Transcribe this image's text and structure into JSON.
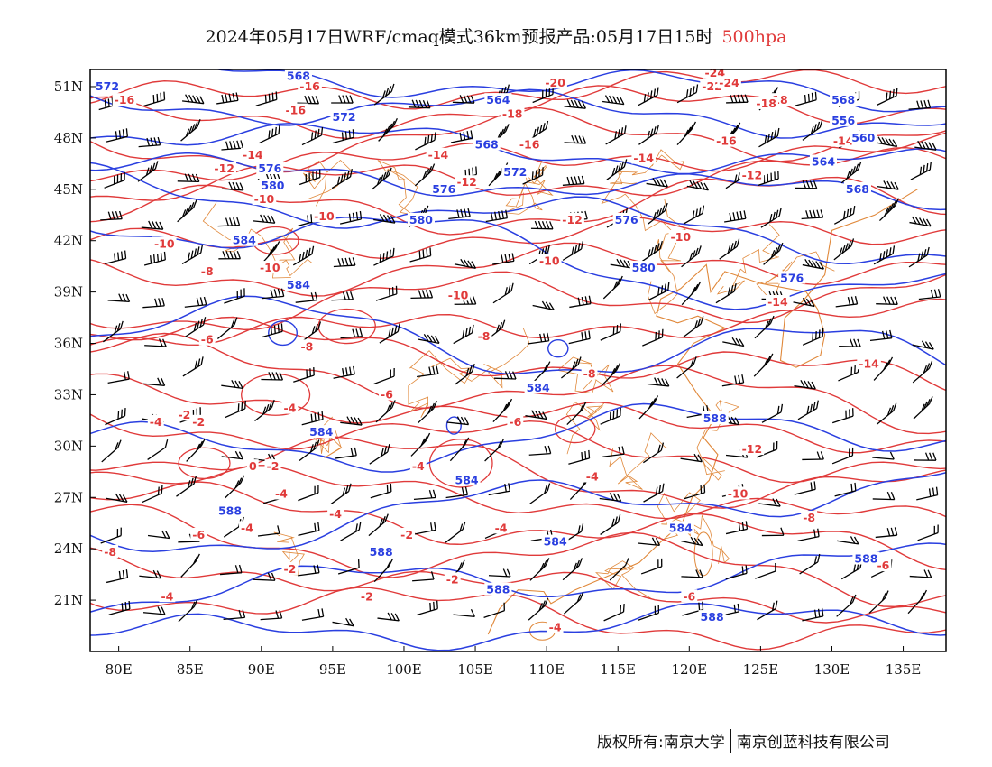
{
  "title": {
    "main": "2024年05月17日WRF/cmaq模式36km预报产品:05月17日15时",
    "level": "500hpa"
  },
  "axes": {
    "lon_ticks": [
      "80E",
      "85E",
      "90E",
      "95E",
      "100E",
      "105E",
      "110E",
      "115E",
      "120E",
      "125E",
      "130E",
      "135E"
    ],
    "lat_ticks": [
      "51N",
      "48N",
      "45N",
      "42N",
      "39N",
      "36N",
      "33N",
      "30N",
      "27N",
      "24N",
      "21N"
    ],
    "lon_range": [
      78,
      138
    ],
    "lat_range": [
      18,
      52
    ]
  },
  "colors": {
    "height_contours": "#2a3fe0",
    "temperature_contours": "#e03a3a",
    "borders": "#e0883a",
    "wind_barbs": "#000000"
  },
  "height_labels": [
    {
      "text": "572",
      "lon": 79.2,
      "lat": 51.0
    },
    {
      "text": "568",
      "lon": 92.6,
      "lat": 51.6
    },
    {
      "text": "564",
      "lon": 106.6,
      "lat": 50.2
    },
    {
      "text": "572",
      "lon": 95.8,
      "lat": 49.2
    },
    {
      "text": "568",
      "lon": 105.8,
      "lat": 47.6
    },
    {
      "text": "576",
      "lon": 90.6,
      "lat": 46.2
    },
    {
      "text": "572",
      "lon": 107.8,
      "lat": 46.0
    },
    {
      "text": "576",
      "lon": 102.8,
      "lat": 45.0
    },
    {
      "text": "580",
      "lon": 90.8,
      "lat": 45.2
    },
    {
      "text": "580",
      "lon": 101.2,
      "lat": 43.2
    },
    {
      "text": "576",
      "lon": 115.6,
      "lat": 43.2
    },
    {
      "text": "584",
      "lon": 88.8,
      "lat": 42.0
    },
    {
      "text": "580",
      "lon": 116.8,
      "lat": 40.4
    },
    {
      "text": "584",
      "lon": 92.6,
      "lat": 39.4
    },
    {
      "text": "576",
      "lon": 127.2,
      "lat": 39.8
    },
    {
      "text": "568",
      "lon": 130.8,
      "lat": 50.2
    },
    {
      "text": "556",
      "lon": 130.8,
      "lat": 49.0
    },
    {
      "text": "560",
      "lon": 132.2,
      "lat": 48.0
    },
    {
      "text": "564",
      "lon": 129.4,
      "lat": 46.6
    },
    {
      "text": "568",
      "lon": 131.8,
      "lat": 45.0
    },
    {
      "text": "584",
      "lon": 109.4,
      "lat": 33.4
    },
    {
      "text": "588",
      "lon": 121.8,
      "lat": 31.6
    },
    {
      "text": "584",
      "lon": 94.2,
      "lat": 30.8
    },
    {
      "text": "584",
      "lon": 104.4,
      "lat": 28.0
    },
    {
      "text": "588",
      "lon": 87.8,
      "lat": 26.2
    },
    {
      "text": "584",
      "lon": 119.4,
      "lat": 25.2
    },
    {
      "text": "584",
      "lon": 110.6,
      "lat": 24.4
    },
    {
      "text": "588",
      "lon": 98.4,
      "lat": 23.8
    },
    {
      "text": "588",
      "lon": 132.4,
      "lat": 23.4
    },
    {
      "text": "588",
      "lon": 106.6,
      "lat": 21.6
    },
    {
      "text": "588",
      "lon": 121.6,
      "lat": 20.0
    }
  ],
  "temp_labels": [
    {
      "text": "-16",
      "lon": 80.4,
      "lat": 50.2
    },
    {
      "text": "-16",
      "lon": 93.4,
      "lat": 51.0
    },
    {
      "text": "-16",
      "lon": 92.4,
      "lat": 49.6
    },
    {
      "text": "-20",
      "lon": 110.6,
      "lat": 51.2
    },
    {
      "text": "-18",
      "lon": 107.6,
      "lat": 49.4
    },
    {
      "text": "-16",
      "lon": 108.8,
      "lat": 47.6
    },
    {
      "text": "-14",
      "lon": 102.4,
      "lat": 47.0
    },
    {
      "text": "-14",
      "lon": 89.4,
      "lat": 47.0
    },
    {
      "text": "-12",
      "lon": 87.4,
      "lat": 46.2
    },
    {
      "text": "-14",
      "lon": 116.8,
      "lat": 46.8
    },
    {
      "text": "-12",
      "lon": 104.4,
      "lat": 45.4
    },
    {
      "text": "-10",
      "lon": 90.2,
      "lat": 44.4
    },
    {
      "text": "-10",
      "lon": 94.4,
      "lat": 43.4
    },
    {
      "text": "-12",
      "lon": 111.8,
      "lat": 43.2
    },
    {
      "text": "-10",
      "lon": 83.2,
      "lat": 41.8
    },
    {
      "text": "-10",
      "lon": 119.4,
      "lat": 42.2
    },
    {
      "text": "-10",
      "lon": 110.2,
      "lat": 40.8
    },
    {
      "text": "-10",
      "lon": 90.6,
      "lat": 40.4
    },
    {
      "text": "-8",
      "lon": 86.2,
      "lat": 40.2
    },
    {
      "text": "-10",
      "lon": 103.8,
      "lat": 38.8
    },
    {
      "text": "-14",
      "lon": 126.2,
      "lat": 38.4
    },
    {
      "text": "-6",
      "lon": 86.2,
      "lat": 36.2
    },
    {
      "text": "-8",
      "lon": 93.2,
      "lat": 35.8
    },
    {
      "text": "-8",
      "lon": 105.6,
      "lat": 36.4
    },
    {
      "text": "-8",
      "lon": 113.0,
      "lat": 34.2
    },
    {
      "text": "-6",
      "lon": 98.8,
      "lat": 33.0
    },
    {
      "text": "-14",
      "lon": 132.6,
      "lat": 34.8
    },
    {
      "text": "-4",
      "lon": 82.6,
      "lat": 31.4
    },
    {
      "text": "-2",
      "lon": 84.6,
      "lat": 31.8
    },
    {
      "text": "-2",
      "lon": 85.6,
      "lat": 31.4
    },
    {
      "text": "-4",
      "lon": 92.0,
      "lat": 32.2
    },
    {
      "text": "-6",
      "lon": 107.8,
      "lat": 31.4
    },
    {
      "text": "-12",
      "lon": 124.4,
      "lat": 29.8
    },
    {
      "text": "0",
      "lon": 89.4,
      "lat": 28.8
    },
    {
      "text": "-2",
      "lon": 90.8,
      "lat": 28.8
    },
    {
      "text": "-4",
      "lon": 101.0,
      "lat": 28.8
    },
    {
      "text": "-4",
      "lon": 113.2,
      "lat": 28.2
    },
    {
      "text": "-4",
      "lon": 91.4,
      "lat": 27.2
    },
    {
      "text": "-10",
      "lon": 123.4,
      "lat": 27.2
    },
    {
      "text": "-4",
      "lon": 95.2,
      "lat": 26.0
    },
    {
      "text": "-4",
      "lon": 89.0,
      "lat": 25.2
    },
    {
      "text": "-6",
      "lon": 85.6,
      "lat": 24.8
    },
    {
      "text": "-4",
      "lon": 106.8,
      "lat": 25.2
    },
    {
      "text": "-8",
      "lon": 128.4,
      "lat": 25.8
    },
    {
      "text": "-8",
      "lon": 79.4,
      "lat": 23.8
    },
    {
      "text": "-2",
      "lon": 100.2,
      "lat": 24.8
    },
    {
      "text": "-2",
      "lon": 92.0,
      "lat": 22.8
    },
    {
      "text": "-6",
      "lon": 133.6,
      "lat": 23.0
    },
    {
      "text": "-2",
      "lon": 103.4,
      "lat": 22.2
    },
    {
      "text": "-4",
      "lon": 83.4,
      "lat": 21.2
    },
    {
      "text": "-2",
      "lon": 97.4,
      "lat": 21.2
    },
    {
      "text": "-6",
      "lon": 120.0,
      "lat": 21.2
    },
    {
      "text": "-4",
      "lon": 110.6,
      "lat": 19.4
    },
    {
      "text": "-18",
      "lon": 126.2,
      "lat": 50.2
    },
    {
      "text": "-18",
      "lon": 125.4,
      "lat": 50.0
    },
    {
      "text": "-16",
      "lon": 122.6,
      "lat": 47.8
    },
    {
      "text": "-14",
      "lon": 130.8,
      "lat": 47.8
    },
    {
      "text": "-12",
      "lon": 124.4,
      "lat": 45.8
    },
    {
      "text": "-22",
      "lon": 121.6,
      "lat": 51.0
    },
    {
      "text": "-24",
      "lon": 121.8,
      "lat": 51.8
    },
    {
      "text": "-24",
      "lon": 122.8,
      "lat": 51.2
    }
  ],
  "footer": {
    "left": "版权所有:南京大学",
    "right": "南京创蓝科技有限公司"
  }
}
